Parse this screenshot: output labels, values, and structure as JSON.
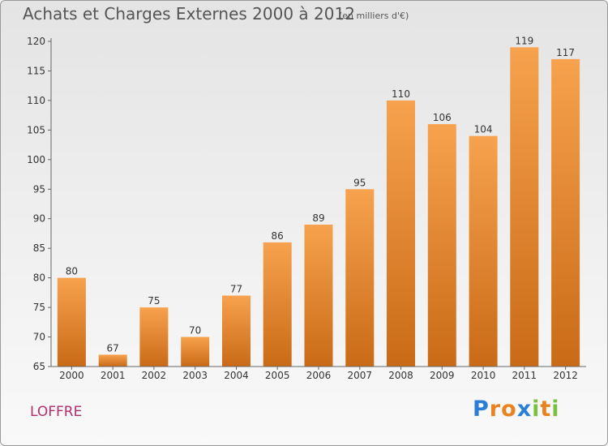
{
  "title": "Achats et Charges Externes 2000 à 2012",
  "unit_label": "(en milliers d'€)",
  "commune": "LOFFRE",
  "logo": {
    "letters": [
      "P",
      "r",
      "o",
      "x",
      "i",
      "t",
      "i"
    ],
    "colors": [
      "#2a7fd4",
      "#e8831f",
      "#e8831f",
      "#2a7fd4",
      "#7ac143",
      "#e8831f",
      "#7ac143"
    ]
  },
  "chart_data": {
    "type": "bar",
    "categories": [
      "2000",
      "2001",
      "2002",
      "2003",
      "2004",
      "2005",
      "2006",
      "2007",
      "2008",
      "2009",
      "2010",
      "2011",
      "2012"
    ],
    "values": [
      80,
      67,
      75,
      70,
      77,
      86,
      89,
      95,
      110,
      106,
      104,
      119,
      117
    ],
    "data_labels": [
      "80",
      "67",
      "75",
      "70",
      "77",
      "86",
      "89",
      "95",
      "110",
      "106",
      "104",
      "119",
      "117"
    ],
    "y_ticks": [
      "65",
      "70",
      "75",
      "80",
      "85",
      "90",
      "95",
      "100",
      "105",
      "110",
      "115",
      "120"
    ],
    "ylim": [
      65,
      120
    ],
    "grid": false,
    "legend": "none",
    "bar_color_top": "#f7a24e",
    "bar_color_bottom": "#c96a16"
  }
}
